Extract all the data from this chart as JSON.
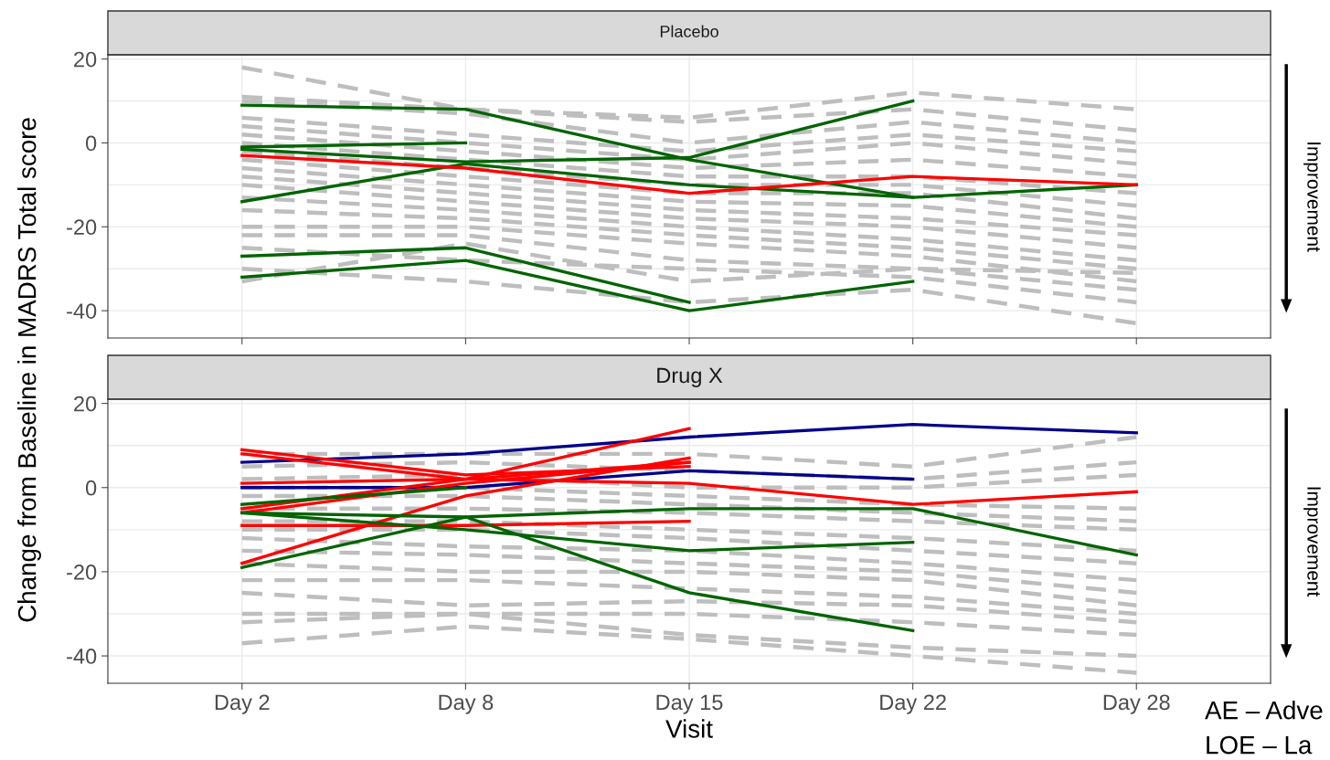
{
  "chart_data": [
    {
      "type": "line",
      "title": "Placebo",
      "ylabel": "Change from Baseline in MADRS Total score",
      "categories": [
        null,
        null,
        null,
        null,
        null
      ],
      "ylim": [
        -46.5,
        21
      ],
      "yticks": [
        -40,
        -20,
        0,
        20
      ],
      "grid": true,
      "legend": false,
      "tick_labels": "y",
      "annotations": [
        "Improvement"
      ],
      "series": [
        {
          "color": "#bebebe",
          "line_style": "dashed",
          "values": [
            18,
            8,
            6,
            12,
            8
          ]
        },
        {
          "color": "#bebebe",
          "line_style": "dashed",
          "values": [
            11,
            8,
            5,
            8,
            3
          ]
        },
        {
          "color": "#bebebe",
          "line_style": "dashed",
          "values": [
            10,
            7,
            0,
            5,
            0
          ]
        },
        {
          "color": "#bebebe",
          "line_style": "dashed",
          "values": [
            6,
            2,
            -2,
            2,
            -2
          ]
        },
        {
          "color": "#bebebe",
          "line_style": "dashed",
          "values": [
            4,
            0,
            -4,
            0,
            -5
          ]
        },
        {
          "color": "#bebebe",
          "line_style": "dashed",
          "values": [
            2,
            -2,
            -6,
            -4,
            -8
          ]
        },
        {
          "color": "#bebebe",
          "line_style": "dashed",
          "values": [
            0,
            -4,
            -8,
            -8,
            -12
          ]
        },
        {
          "color": "#bebebe",
          "line_style": "dashed",
          "values": [
            -2,
            -6,
            -10,
            -10,
            -15
          ]
        },
        {
          "color": "#bebebe",
          "line_style": "dashed",
          "values": [
            -4,
            -8,
            -12,
            -12,
            -18
          ]
        },
        {
          "color": "#bebebe",
          "line_style": "dashed",
          "values": [
            -6,
            -10,
            -14,
            -15,
            -20
          ]
        },
        {
          "color": "#bebebe",
          "line_style": "dashed",
          "values": [
            -8,
            -12,
            -16,
            -18,
            -22
          ]
        },
        {
          "color": "#bebebe",
          "line_style": "dashed",
          "values": [
            -10,
            -14,
            -18,
            -20,
            -25
          ]
        },
        {
          "color": "#bebebe",
          "line_style": "dashed",
          "values": [
            -13,
            -16,
            -20,
            -23,
            -28
          ]
        },
        {
          "color": "#bebebe",
          "line_style": "dashed",
          "values": [
            -16,
            -18,
            -22,
            -25,
            -30
          ]
        },
        {
          "color": "#bebebe",
          "line_style": "dashed",
          "values": [
            -20,
            -20,
            -24,
            -27,
            -33
          ]
        },
        {
          "color": "#bebebe",
          "line_style": "dashed",
          "values": [
            -22,
            -22,
            -28,
            -30,
            -35
          ]
        },
        {
          "color": "#bebebe",
          "line_style": "dashed",
          "values": [
            -25,
            -28,
            -30,
            -32,
            -38
          ]
        },
        {
          "color": "#bebebe",
          "line_style": "dashed",
          "values": [
            -30,
            -33,
            -38,
            -35,
            -43
          ]
        },
        {
          "color": "#bebebe",
          "line_style": "dashed",
          "values": [
            -33,
            -24,
            -33,
            -30,
            -31
          ]
        },
        {
          "color": "#006400",
          "line_style": "solid",
          "values": [
            9,
            8,
            -4,
            -13,
            null
          ]
        },
        {
          "color": "#006400",
          "line_style": "solid",
          "values": [
            -1,
            0,
            null,
            null,
            null
          ]
        },
        {
          "color": "#006400",
          "line_style": "solid",
          "values": [
            -1.5,
            -4.5,
            -3.5,
            10,
            null
          ]
        },
        {
          "color": "#006400",
          "line_style": "solid",
          "values": [
            -14,
            -5,
            -10,
            -13,
            -10
          ]
        },
        {
          "color": "#ff0000",
          "line_style": "solid",
          "values": [
            -3,
            -6,
            -12,
            -8,
            -10
          ]
        },
        {
          "color": "#006400",
          "line_style": "solid",
          "values": [
            -27,
            -25,
            -38,
            null,
            null
          ]
        },
        {
          "color": "#006400",
          "line_style": "solid",
          "values": [
            -32,
            -28,
            -40,
            -33,
            null
          ]
        }
      ]
    },
    {
      "type": "line",
      "title": "Drug X",
      "xlabel": "Visit",
      "categories": [
        "Day 2",
        "Day 8",
        "Day 15",
        "Day 22",
        "Day 28"
      ],
      "ylim": [
        -46.5,
        21
      ],
      "yticks": [
        -40,
        -20,
        0,
        20
      ],
      "grid": true,
      "legend": false,
      "annotations": [
        "Improvement",
        "AE – Adve",
        "LOE – La"
      ],
      "series": [
        {
          "color": "#bebebe",
          "line_style": "dashed",
          "values": [
            8,
            8,
            8,
            5,
            12
          ]
        },
        {
          "color": "#bebebe",
          "line_style": "dashed",
          "values": [
            5,
            6,
            4,
            2,
            6
          ]
        },
        {
          "color": "#bebebe",
          "line_style": "dashed",
          "values": [
            2,
            3,
            0,
            0,
            3
          ]
        },
        {
          "color": "#bebebe",
          "line_style": "dashed",
          "values": [
            0,
            0,
            -2,
            -4,
            -5
          ]
        },
        {
          "color": "#bebebe",
          "line_style": "dashed",
          "values": [
            -2,
            -2,
            -4,
            -6,
            -8
          ]
        },
        {
          "color": "#bebebe",
          "line_style": "dashed",
          "values": [
            -5,
            -5,
            -6,
            -8,
            -10
          ]
        },
        {
          "color": "#bebebe",
          "line_style": "dashed",
          "values": [
            -8,
            -8,
            -10,
            -12,
            -15
          ]
        },
        {
          "color": "#bebebe",
          "line_style": "dashed",
          "values": [
            -10,
            -10,
            -12,
            -15,
            -18
          ]
        },
        {
          "color": "#bebebe",
          "line_style": "dashed",
          "values": [
            -12,
            -14,
            -15,
            -18,
            -22
          ]
        },
        {
          "color": "#bebebe",
          "line_style": "dashed",
          "values": [
            -15,
            -16,
            -18,
            -20,
            -25
          ]
        },
        {
          "color": "#bebebe",
          "line_style": "dashed",
          "values": [
            -18,
            -20,
            -20,
            -22,
            -28
          ]
        },
        {
          "color": "#bebebe",
          "line_style": "dashed",
          "values": [
            -22,
            -22,
            -24,
            -26,
            -30
          ]
        },
        {
          "color": "#bebebe",
          "line_style": "dashed",
          "values": [
            -25,
            -28,
            -27,
            -28,
            -32
          ]
        },
        {
          "color": "#bebebe",
          "line_style": "dashed",
          "values": [
            -30,
            -30,
            -30,
            -32,
            -35
          ]
        },
        {
          "color": "#bebebe",
          "line_style": "dashed",
          "values": [
            -32,
            -30,
            -35,
            -38,
            -40
          ]
        },
        {
          "color": "#bebebe",
          "line_style": "dashed",
          "values": [
            -37,
            -33,
            -36,
            -40,
            -44
          ]
        },
        {
          "color": "#00008b",
          "line_style": "solid",
          "values": [
            6,
            8,
            12,
            15,
            13
          ]
        },
        {
          "color": "#00008b",
          "line_style": "solid",
          "values": [
            0,
            0,
            4,
            2,
            null
          ]
        },
        {
          "color": "#ff0000",
          "line_style": "solid",
          "values": [
            9,
            3,
            5,
            null,
            null
          ]
        },
        {
          "color": "#ff0000",
          "line_style": "solid",
          "values": [
            8,
            2,
            6,
            null,
            null
          ]
        },
        {
          "color": "#ff0000",
          "line_style": "solid",
          "values": [
            1,
            2,
            1,
            -4,
            -1
          ]
        },
        {
          "color": "#ff0000",
          "line_style": "solid",
          "values": [
            -5,
            2,
            14,
            null,
            null
          ]
        },
        {
          "color": "#ff0000",
          "line_style": "solid",
          "values": [
            -18,
            -2,
            7,
            null,
            null
          ]
        },
        {
          "color": "#ff0000",
          "line_style": "solid",
          "values": [
            -9,
            -9,
            -8,
            null,
            null
          ]
        },
        {
          "color": "#ff0000",
          "line_style": "solid",
          "values": [
            -6,
            1,
            6,
            null,
            null
          ]
        },
        {
          "color": "#006400",
          "line_style": "solid",
          "values": [
            -4,
            0,
            null,
            null,
            null
          ]
        },
        {
          "color": "#006400",
          "line_style": "solid",
          "values": [
            -6,
            -7,
            -5,
            -5,
            -16
          ]
        },
        {
          "color": "#006400",
          "line_style": "solid",
          "values": [
            -19,
            -7,
            -25,
            -34,
            null
          ]
        },
        {
          "color": "#006400",
          "line_style": "solid",
          "values": [
            -6,
            -10,
            -15,
            -13,
            null
          ]
        }
      ]
    }
  ]
}
